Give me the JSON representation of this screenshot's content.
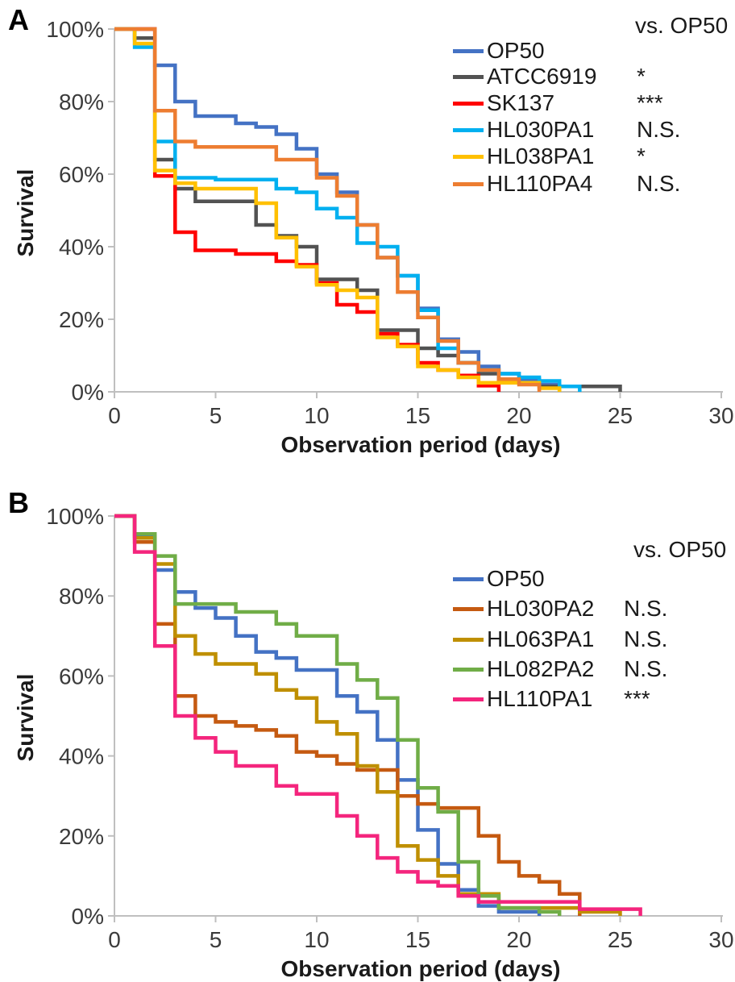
{
  "style": {
    "axis_color": "#BFBFBF",
    "tick_text_color": "#3B3B3B",
    "text_color": "#1A1A1A",
    "background": "#FFFFFF"
  },
  "figure": {
    "panel_a_letter": "A",
    "panel_b_letter": "B"
  },
  "chart_data": [
    {
      "type": "line",
      "subtype": "step-survival-curve",
      "panel": "A",
      "xlabel": "Observation period (days)",
      "ylabel": "Survival",
      "legend_header": "vs. OP50",
      "legend_position": "upper right",
      "grid": false,
      "xlim": [
        0,
        30
      ],
      "ylim": [
        0,
        100
      ],
      "x_ticks": [
        0,
        5,
        10,
        15,
        20,
        25,
        30
      ],
      "y_ticks": [
        {
          "value": 100,
          "label": "100%"
        },
        {
          "value": 80,
          "label": "80%"
        },
        {
          "value": 60,
          "label": "60%"
        },
        {
          "value": 40,
          "label": "40%"
        },
        {
          "value": 20,
          "label": "20%"
        },
        {
          "value": 0,
          "label": "0%"
        }
      ],
      "series": [
        {
          "name": "OP50",
          "color": "#4472C4",
          "significance": "",
          "points": [
            [
              0,
              100
            ],
            [
              2,
              90
            ],
            [
              3,
              80
            ],
            [
              4,
              76
            ],
            [
              6,
              74
            ],
            [
              7,
              73
            ],
            [
              8,
              71
            ],
            [
              9,
              67
            ],
            [
              10,
              60
            ],
            [
              11,
              55
            ],
            [
              12,
              46
            ],
            [
              13,
              37
            ],
            [
              14,
              32
            ],
            [
              15,
              23
            ],
            [
              16,
              14.5
            ],
            [
              17,
              11
            ],
            [
              18,
              7
            ],
            [
              19,
              5
            ],
            [
              20,
              3.5
            ],
            [
              21,
              2
            ],
            [
              22,
              0
            ]
          ]
        },
        {
          "name": "ATCC6919",
          "color": "#525252",
          "significance": "*",
          "points": [
            [
              0,
              100
            ],
            [
              1,
              97.5
            ],
            [
              2,
              64
            ],
            [
              3,
              56
            ],
            [
              4,
              52.5
            ],
            [
              7,
              46
            ],
            [
              8,
              43
            ],
            [
              9,
              40
            ],
            [
              10,
              31
            ],
            [
              12,
              28
            ],
            [
              13,
              17
            ],
            [
              15,
              12
            ],
            [
              16,
              10
            ],
            [
              17,
              8
            ],
            [
              18,
              5
            ],
            [
              19,
              2.5
            ],
            [
              21,
              1.5
            ],
            [
              25,
              0
            ]
          ]
        },
        {
          "name": "SK137",
          "color": "#FF0000",
          "significance": "***",
          "points": [
            [
              0,
              100
            ],
            [
              2,
              59.5
            ],
            [
              3,
              44
            ],
            [
              4,
              39
            ],
            [
              6,
              38
            ],
            [
              8,
              36
            ],
            [
              9,
              35
            ],
            [
              10,
              30
            ],
            [
              11,
              24
            ],
            [
              12,
              22
            ],
            [
              13,
              16
            ],
            [
              14,
              13
            ],
            [
              15,
              8
            ],
            [
              16,
              6
            ],
            [
              17,
              4.5
            ],
            [
              18,
              1.7
            ],
            [
              19,
              0
            ]
          ]
        },
        {
          "name": "HL030PA1",
          "color": "#00B0F0",
          "significance": "N.S.",
          "points": [
            [
              0,
              100
            ],
            [
              1,
              95
            ],
            [
              2,
              69
            ],
            [
              3,
              59
            ],
            [
              5,
              58.5
            ],
            [
              8,
              56
            ],
            [
              9,
              55
            ],
            [
              10,
              50.5
            ],
            [
              11,
              48
            ],
            [
              12,
              41
            ],
            [
              13,
              40
            ],
            [
              14,
              32
            ],
            [
              15,
              22.5
            ],
            [
              16,
              12
            ],
            [
              17,
              8
            ],
            [
              18,
              6
            ],
            [
              19,
              5
            ],
            [
              20,
              4
            ],
            [
              21,
              3
            ],
            [
              22,
              1.5
            ],
            [
              23,
              0
            ]
          ]
        },
        {
          "name": "HL038PA1",
          "color": "#FFC000",
          "significance": "*",
          "points": [
            [
              0,
              100
            ],
            [
              1,
              96
            ],
            [
              2,
              61
            ],
            [
              3,
              57.5
            ],
            [
              4,
              56
            ],
            [
              7,
              52
            ],
            [
              8,
              42.5
            ],
            [
              9,
              34.5
            ],
            [
              10,
              29.5
            ],
            [
              11,
              28
            ],
            [
              12,
              26
            ],
            [
              13,
              15
            ],
            [
              14,
              12.5
            ],
            [
              15,
              7
            ],
            [
              16,
              6
            ],
            [
              17,
              4
            ],
            [
              18,
              2.5
            ],
            [
              21,
              1
            ],
            [
              22,
              0
            ]
          ]
        },
        {
          "name": "HL110PA4",
          "color": "#ED7D31",
          "significance": "N.S.",
          "points": [
            [
              0,
              100
            ],
            [
              2,
              77.5
            ],
            [
              3,
              69
            ],
            [
              4,
              67.5
            ],
            [
              8,
              64
            ],
            [
              10,
              59
            ],
            [
              11,
              54
            ],
            [
              12,
              46
            ],
            [
              13,
              37
            ],
            [
              14,
              27.5
            ],
            [
              15,
              20.5
            ],
            [
              16,
              14
            ],
            [
              17,
              8
            ],
            [
              18,
              6
            ],
            [
              19,
              3.5
            ],
            [
              20,
              2
            ],
            [
              21,
              0
            ]
          ]
        }
      ]
    },
    {
      "type": "line",
      "subtype": "step-survival-curve",
      "panel": "B",
      "xlabel": "Observation period (days)",
      "ylabel": "Survival",
      "legend_header": "vs. OP50",
      "legend_position": "upper right",
      "grid": false,
      "xlim": [
        0,
        30
      ],
      "ylim": [
        0,
        100
      ],
      "x_ticks": [
        0,
        5,
        10,
        15,
        20,
        25,
        30
      ],
      "y_ticks": [
        {
          "value": 100,
          "label": "100%"
        },
        {
          "value": 80,
          "label": "80%"
        },
        {
          "value": 60,
          "label": "60%"
        },
        {
          "value": 40,
          "label": "40%"
        },
        {
          "value": 20,
          "label": "20%"
        },
        {
          "value": 0,
          "label": "0%"
        }
      ],
      "series": [
        {
          "name": "OP50",
          "color": "#4472C4",
          "significance": "",
          "points": [
            [
              0,
              100
            ],
            [
              1,
              95
            ],
            [
              2,
              86.5
            ],
            [
              3,
              81
            ],
            [
              4,
              77
            ],
            [
              5,
              74.5
            ],
            [
              6,
              70
            ],
            [
              7,
              66
            ],
            [
              8,
              64.5
            ],
            [
              9,
              61.5
            ],
            [
              11,
              55
            ],
            [
              12,
              51
            ],
            [
              13,
              44
            ],
            [
              14,
              34
            ],
            [
              15,
              21.5
            ],
            [
              16,
              13
            ],
            [
              17,
              6.5
            ],
            [
              18,
              2.5
            ],
            [
              19,
              1
            ],
            [
              21,
              0
            ]
          ]
        },
        {
          "name": "HL030PA2",
          "color": "#C55A11",
          "significance": "N.S.",
          "points": [
            [
              0,
              100
            ],
            [
              1,
              93.5
            ],
            [
              2,
              73
            ],
            [
              3,
              55
            ],
            [
              4,
              50
            ],
            [
              5,
              48.5
            ],
            [
              6,
              47.5
            ],
            [
              7,
              46.5
            ],
            [
              8,
              45
            ],
            [
              9,
              41
            ],
            [
              10,
              40
            ],
            [
              11,
              38
            ],
            [
              12,
              36.5
            ],
            [
              14,
              30
            ],
            [
              15,
              28
            ],
            [
              16,
              27
            ],
            [
              18,
              20
            ],
            [
              19,
              13.5
            ],
            [
              20,
              10
            ],
            [
              21,
              8.5
            ],
            [
              22,
              5.5
            ],
            [
              23,
              0
            ]
          ]
        },
        {
          "name": "HL063PA1",
          "color": "#BF8F00",
          "significance": "N.S.",
          "points": [
            [
              0,
              100
            ],
            [
              1,
              94.5
            ],
            [
              2,
              88
            ],
            [
              3,
              70
            ],
            [
              4,
              65.5
            ],
            [
              5,
              63
            ],
            [
              7,
              60.5
            ],
            [
              8,
              56.5
            ],
            [
              9,
              54.5
            ],
            [
              10,
              48.5
            ],
            [
              11,
              45.5
            ],
            [
              12,
              37.5
            ],
            [
              13,
              31
            ],
            [
              14,
              17.5
            ],
            [
              15,
              14
            ],
            [
              16,
              10
            ],
            [
              17,
              5.5
            ],
            [
              19,
              2
            ],
            [
              23,
              1
            ],
            [
              25,
              0
            ]
          ]
        },
        {
          "name": "HL082PA2",
          "color": "#70AD47",
          "significance": "N.S.",
          "points": [
            [
              0,
              100
            ],
            [
              1,
              95.5
            ],
            [
              2,
              90
            ],
            [
              3,
              78
            ],
            [
              6,
              76
            ],
            [
              8,
              73
            ],
            [
              9,
              70
            ],
            [
              11,
              63
            ],
            [
              12,
              59
            ],
            [
              13,
              54.5
            ],
            [
              14,
              44
            ],
            [
              15,
              32
            ],
            [
              16,
              26
            ],
            [
              17,
              13.5
            ],
            [
              18,
              5
            ],
            [
              19,
              2
            ],
            [
              21,
              1
            ],
            [
              22,
              0
            ]
          ]
        },
        {
          "name": "HL110PA1",
          "color": "#F4257D",
          "significance": "***",
          "points": [
            [
              0,
              100
            ],
            [
              1,
              91
            ],
            [
              2,
              67.5
            ],
            [
              3,
              50
            ],
            [
              4,
              44.5
            ],
            [
              5,
              41
            ],
            [
              6,
              37.5
            ],
            [
              8,
              32.5
            ],
            [
              9,
              30.5
            ],
            [
              11,
              25
            ],
            [
              12,
              20
            ],
            [
              13,
              14.5
            ],
            [
              14,
              11
            ],
            [
              15,
              8.5
            ],
            [
              16,
              7.5
            ],
            [
              17,
              5
            ],
            [
              18,
              3.5
            ],
            [
              23,
              1.7
            ],
            [
              26,
              0
            ]
          ]
        }
      ]
    }
  ]
}
